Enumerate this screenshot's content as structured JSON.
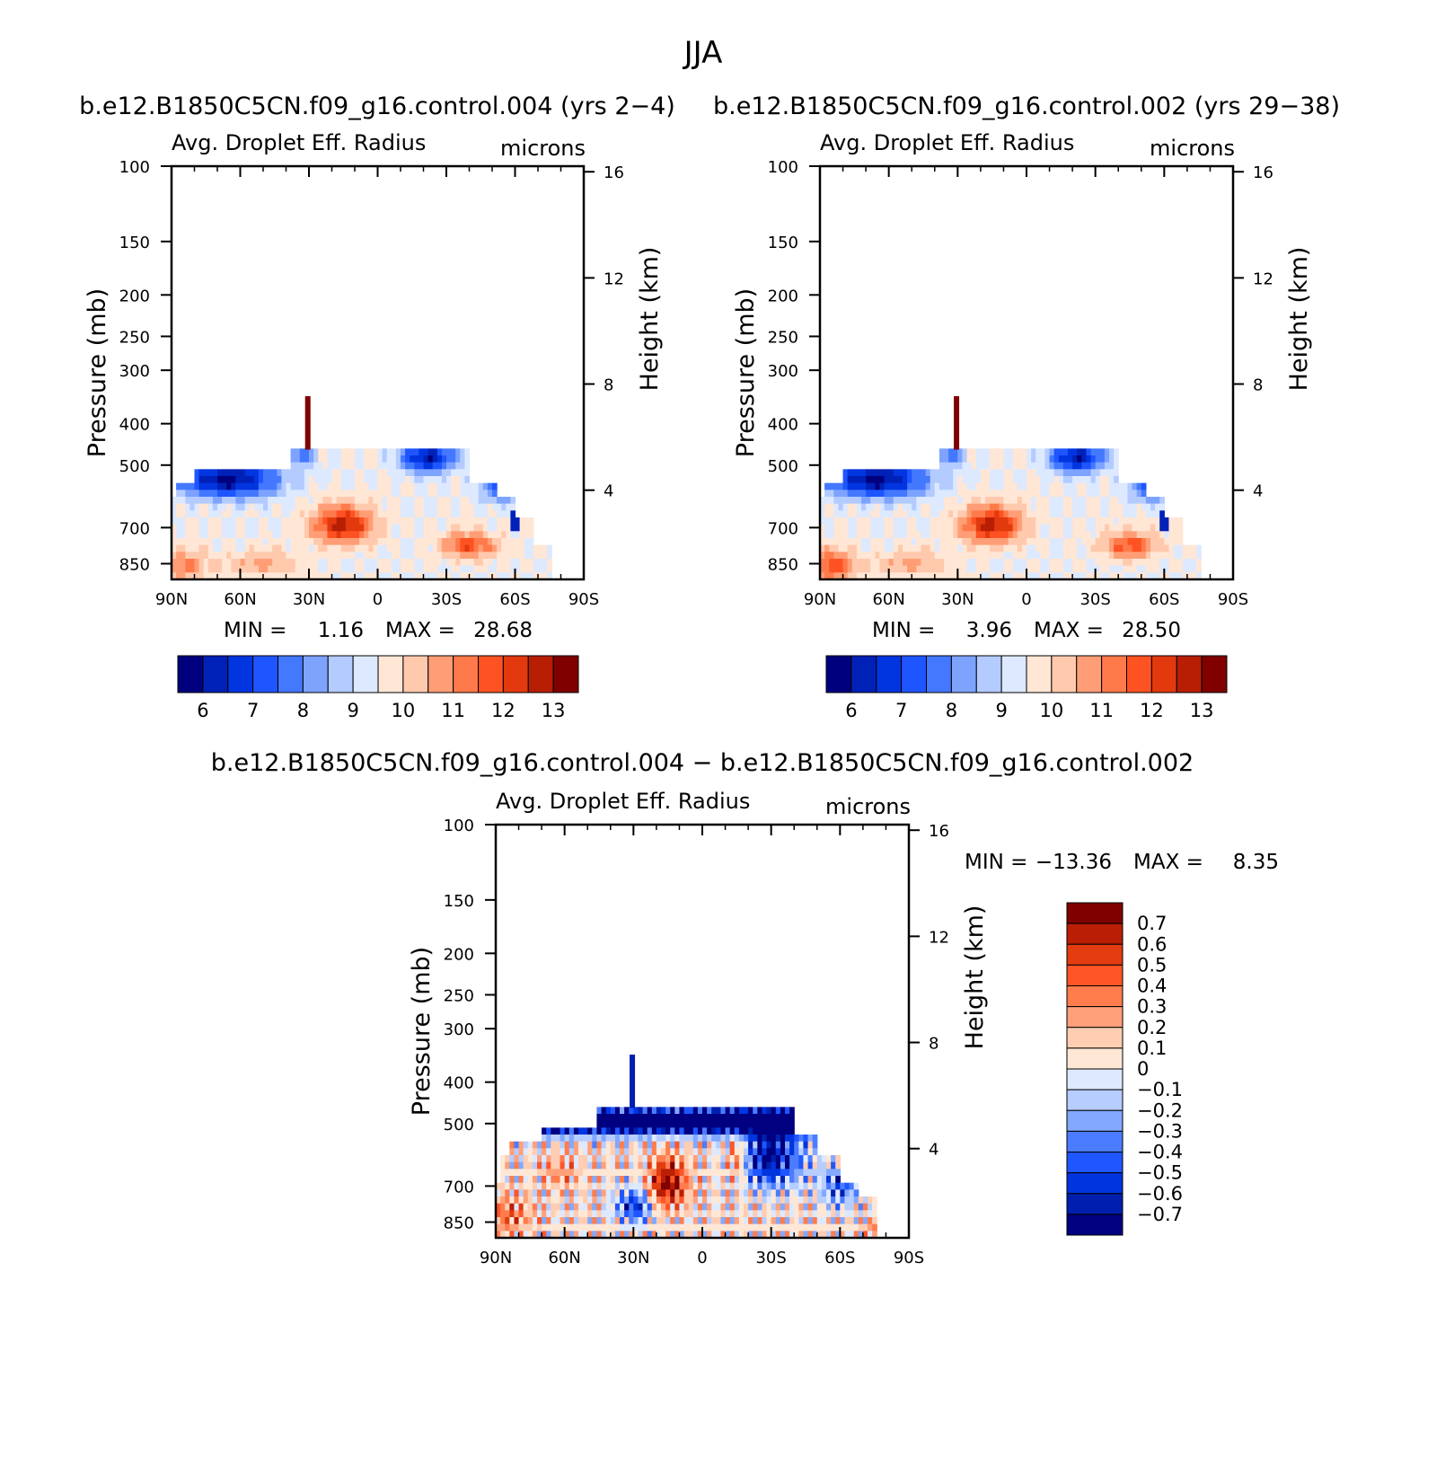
{
  "figure": {
    "season": "JJA"
  },
  "colors": {
    "absolute_scale": [
      "#00007f",
      "#0021b8",
      "#0035e0",
      "#1f55ff",
      "#4378ff",
      "#7da3ff",
      "#b3cbff",
      "#dde9ff",
      "#ffe6d5",
      "#ffc9ad",
      "#ff9e76",
      "#ff7a4a",
      "#ff5222",
      "#e23a0e",
      "#b81e04",
      "#800000"
    ],
    "difference_scale": [
      "#000080",
      "#001fae",
      "#0034de",
      "#1f56ff",
      "#4b7cff",
      "#82a8ff",
      "#b7cdff",
      "#dde9ff",
      "#ffe7d6",
      "#ffcdb2",
      "#ffa07a",
      "#ff7c4c",
      "#ff5526",
      "#e23c10",
      "#ba1e05",
      "#800000"
    ]
  },
  "chart_data": [
    {
      "type": "heatmap",
      "title": "b.e12.B1850C5CN.f09_g16.control.004 (yrs 2-4)",
      "subtitle_left": "Avg. Droplet Eff. Radius",
      "subtitle_right": "microns",
      "ylabel": "Pressure (mb)",
      "ylabel_right": "Height (km)",
      "x_ticks": [
        "90N",
        "60N",
        "30N",
        "0",
        "30S",
        "60S",
        "90S"
      ],
      "y_ticks": [
        "100",
        "150",
        "200",
        "250",
        "300",
        "400",
        "500",
        "700",
        "850"
      ],
      "y_ticks_right": [
        "16",
        "12",
        "8",
        "4"
      ],
      "xlim": [
        "90N",
        "90S"
      ],
      "ylim": [
        100,
        925
      ],
      "min_label": "MIN =",
      "min_value": "1.16",
      "max_label": "MAX =",
      "max_value": "28.68",
      "colorbar_labels": [
        "6",
        "7",
        "8",
        "9",
        "10",
        "11",
        "12",
        "13"
      ],
      "field_summary": [
        {
          "lat_range": [
            "30N",
            "5N"
          ],
          "pressure_range": [
            620,
            760
          ],
          "value_level": "13"
        },
        {
          "lat_range": [
            "40S",
            "55S"
          ],
          "pressure_range": [
            720,
            830
          ],
          "value_level": "12"
        },
        {
          "lat_range": [
            "90N",
            "75N"
          ],
          "pressure_range": [
            780,
            925
          ],
          "value_level": "12"
        },
        {
          "lat_range": [
            "30N",
            "30N"
          ],
          "pressure_range": [
            350,
            450
          ],
          "value_level": "13"
        },
        {
          "lat_range": [
            "90N",
            "45N"
          ],
          "pressure_range": [
            500,
            620
          ],
          "value_level": "7"
        }
      ]
    },
    {
      "type": "heatmap",
      "title": "b.e12.B1850C5CN.f09_g16.control.002 (yrs 29-38)",
      "subtitle_left": "Avg. Droplet Eff. Radius",
      "subtitle_right": "microns",
      "ylabel": "Pressure (mb)",
      "ylabel_right": "Height (km)",
      "x_ticks": [
        "90N",
        "60N",
        "30N",
        "0",
        "30S",
        "60S",
        "90S"
      ],
      "y_ticks": [
        "100",
        "150",
        "200",
        "250",
        "300",
        "400",
        "500",
        "700",
        "850"
      ],
      "y_ticks_right": [
        "16",
        "12",
        "8",
        "4"
      ],
      "xlim": [
        "90N",
        "90S"
      ],
      "ylim": [
        100,
        925
      ],
      "min_label": "MIN =",
      "min_value": "3.96",
      "max_label": "MAX =",
      "max_value": "28.50",
      "colorbar_labels": [
        "6",
        "7",
        "8",
        "9",
        "10",
        "11",
        "12",
        "13"
      ],
      "field_summary": [
        {
          "lat_range": [
            "30N",
            "5N"
          ],
          "pressure_range": [
            620,
            760
          ],
          "value_level": "13"
        },
        {
          "lat_range": [
            "30S",
            "50S"
          ],
          "pressure_range": [
            720,
            830
          ],
          "value_level": "12"
        },
        {
          "lat_range": [
            "90N",
            "75N"
          ],
          "pressure_range": [
            780,
            925
          ],
          "value_level": "11"
        },
        {
          "lat_range": [
            "30N",
            "30N"
          ],
          "pressure_range": [
            350,
            450
          ],
          "value_level": "13"
        }
      ]
    },
    {
      "type": "heatmap",
      "title": "b.e12.B1850C5CN.f09_g16.control.004 - b.e12.B1850C5CN.f09_g16.control.002",
      "subtitle_left": "Avg. Droplet Eff. Radius",
      "subtitle_right": "microns",
      "ylabel": "Pressure (mb)",
      "ylabel_right": "Height (km)",
      "x_ticks": [
        "90N",
        "60N",
        "30N",
        "0",
        "30S",
        "60S",
        "90S"
      ],
      "y_ticks": [
        "100",
        "150",
        "200",
        "250",
        "300",
        "400",
        "500",
        "700",
        "850"
      ],
      "y_ticks_right": [
        "16",
        "12",
        "8",
        "4"
      ],
      "xlim": [
        "90N",
        "90S"
      ],
      "ylim": [
        100,
        925
      ],
      "min_label": "MIN =",
      "min_value": "-13.36",
      "max_label": "MAX =",
      "max_value": "8.35",
      "colorbar_labels": [
        "0.7",
        "0.6",
        "0.5",
        "0.4",
        "0.3",
        "0.2",
        "0.1",
        "0",
        "-0.1",
        "-0.2",
        "-0.3",
        "-0.4",
        "-0.5",
        "-0.6",
        "-0.7"
      ],
      "field_summary": [
        {
          "lat_range": [
            "20N",
            "10N"
          ],
          "pressure_range": [
            600,
            800
          ],
          "value_level": "0.5"
        },
        {
          "lat_range": [
            "90N",
            "75N"
          ],
          "pressure_range": [
            700,
            925
          ],
          "value_level": "0.3"
        },
        {
          "lat_range": [
            "40N",
            "5N"
          ],
          "pressure_range": [
            450,
            520
          ],
          "value_level": "-0.7"
        },
        {
          "lat_range": [
            "45S",
            "65S"
          ],
          "pressure_range": [
            500,
            800
          ],
          "value_level": "-0.6"
        }
      ]
    }
  ]
}
